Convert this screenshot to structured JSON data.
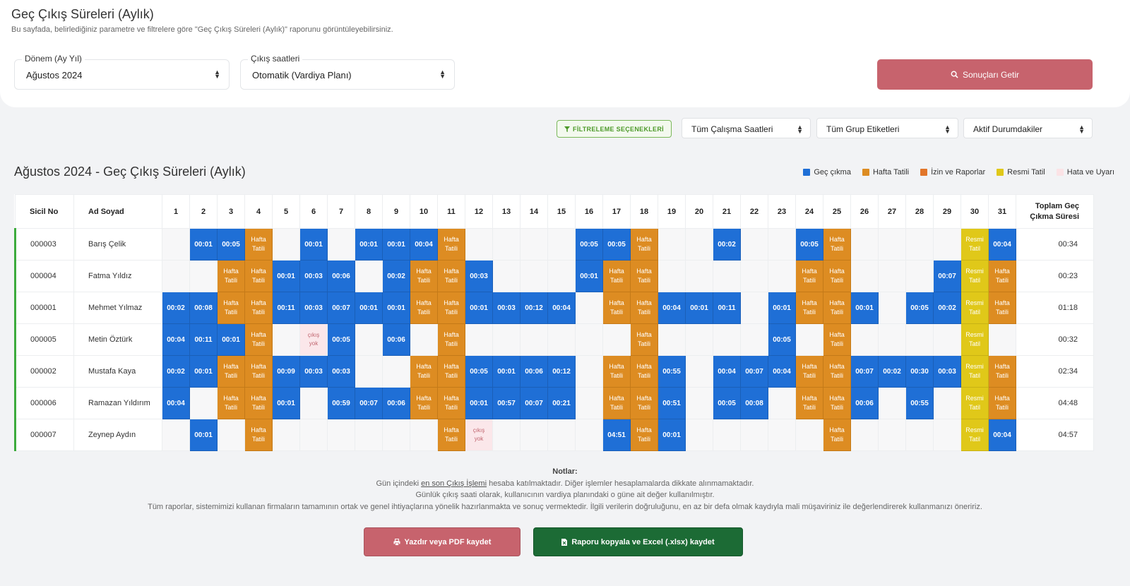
{
  "header": {
    "title": "Geç Çıkış Süreleri (Aylık)",
    "subtitle": "Bu sayfada, belirlediğiniz parametre ve filtrelere göre \"Geç Çıkış Süreleri (Aylık)\" raporunu görüntüleyebilirsiniz."
  },
  "form": {
    "period_label": "Dönem (Ay Yıl)",
    "period_value": "Ağustos 2024",
    "exit_label": "Çıkış saatleri",
    "exit_value": "Otomatik (Vardiya Planı)",
    "submit_label": "Sonuçları Getir"
  },
  "filters": {
    "button_label": "FİLTRELEME SEÇENEKLERİ",
    "work_hours": "Tüm Çalışma Saatleri",
    "group_tags": "Tüm Grup Etiketleri",
    "status": "Aktif Durumdakiler"
  },
  "report": {
    "title": "Ağustos 2024 - Geç Çıkış Süreleri (Aylık)"
  },
  "legend": [
    {
      "label": "Geç çıkma",
      "color": "#1f6fd6"
    },
    {
      "label": "Hafta Tatili",
      "color": "#dd8c22"
    },
    {
      "label": "İzin ve Raporlar",
      "color": "#e2762a"
    },
    {
      "label": "Resmi Tatil",
      "color": "#e0c819"
    },
    {
      "label": "Hata ve Uyarı",
      "color": "#fbe3e6"
    }
  ],
  "table": {
    "col_id": "Sicil No",
    "col_name": "Ad Soyad",
    "col_total": "Toplam Geç Çıkma Süresi",
    "days": [
      "1",
      "2",
      "3",
      "4",
      "5",
      "6",
      "7",
      "8",
      "9",
      "10",
      "11",
      "12",
      "13",
      "14",
      "15",
      "16",
      "17",
      "18",
      "19",
      "20",
      "21",
      "22",
      "23",
      "24",
      "25",
      "26",
      "27",
      "28",
      "29",
      "30",
      "31"
    ],
    "hafta_text": "Hafta Tatili",
    "resmi_text": "Resmi Tatil",
    "hata_text": "çıkış yok",
    "rows": [
      {
        "id": "000003",
        "name": "Barış Çelik",
        "total": "00:34",
        "cells": [
          "",
          "00:01",
          "00:05",
          "H",
          "",
          "00:01",
          "",
          "00:01",
          "00:01",
          "00:04",
          "H",
          "",
          "",
          "",
          "",
          "00:05",
          "00:05",
          "H",
          "",
          "",
          "00:02",
          "",
          "",
          "00:05",
          "H",
          "",
          "",
          "",
          "",
          "R",
          "00:04"
        ]
      },
      {
        "id": "000004",
        "name": "Fatma Yıldız",
        "total": "00:23",
        "cells": [
          "",
          "",
          "H",
          "H",
          "00:01",
          "00:03",
          "00:06",
          "",
          "00:02",
          "H",
          "H",
          "00:03",
          "",
          "",
          "",
          "00:01",
          "H",
          "H",
          "",
          "",
          "",
          "",
          "",
          "H",
          "H",
          "",
          "",
          "",
          "00:07",
          "R",
          "H"
        ]
      },
      {
        "id": "000001",
        "name": "Mehmet Yılmaz",
        "total": "01:18",
        "cells": [
          "00:02",
          "00:08",
          "H",
          "H",
          "00:11",
          "00:03",
          "00:07",
          "00:01",
          "00:01",
          "H",
          "H",
          "00:01",
          "00:03",
          "00:12",
          "00:04",
          "",
          "H",
          "H",
          "00:04",
          "00:01",
          "00:11",
          "",
          "00:01",
          "H",
          "H",
          "00:01",
          "",
          "00:05",
          "00:02",
          "R",
          "H"
        ]
      },
      {
        "id": "000005",
        "name": "Metin Öztürk",
        "total": "00:32",
        "cells": [
          "00:04",
          "00:11",
          "00:01",
          "H",
          "",
          "X",
          "00:05",
          "",
          "00:06",
          "",
          "H",
          "",
          "",
          "",
          "",
          "",
          "",
          "H",
          "",
          "",
          "",
          "",
          "00:05",
          "",
          "H",
          "",
          "",
          "",
          "",
          "R",
          ""
        ]
      },
      {
        "id": "000002",
        "name": "Mustafa Kaya",
        "total": "02:34",
        "cells": [
          "00:02",
          "00:01",
          "H",
          "H",
          "00:09",
          "00:03",
          "00:03",
          "",
          "",
          "H",
          "H",
          "00:05",
          "00:01",
          "00:06",
          "00:12",
          "",
          "H",
          "H",
          "00:55",
          "",
          "00:04",
          "00:07",
          "00:04",
          "H",
          "H",
          "00:07",
          "00:02",
          "00:30",
          "00:03",
          "R",
          "H"
        ]
      },
      {
        "id": "000006",
        "name": "Ramazan Yıldırım",
        "total": "04:48",
        "cells": [
          "00:04",
          "",
          "H",
          "H",
          "00:01",
          "",
          "00:59",
          "00:07",
          "00:06",
          "H",
          "H",
          "00:01",
          "00:57",
          "00:07",
          "00:21",
          "",
          "H",
          "H",
          "00:51",
          "",
          "00:05",
          "00:08",
          "",
          "H",
          "H",
          "00:06",
          "",
          "00:55",
          "",
          "R",
          "H"
        ]
      },
      {
        "id": "000007",
        "name": "Zeynep Aydın",
        "total": "04:57",
        "cells": [
          "",
          "00:01",
          "",
          "H",
          "",
          "",
          "",
          "",
          "",
          "",
          "H",
          "X",
          "",
          "",
          "",
          "",
          "04:51",
          "H",
          "00:01",
          "",
          "",
          "",
          "",
          "",
          "H",
          "",
          "",
          "",
          "",
          "R",
          "00:04"
        ]
      }
    ]
  },
  "notes": {
    "title": "Notlar:",
    "line1_pre": "Gün içindeki ",
    "line1_link": "en son Çıkış İşlemi",
    "line1_post": " hesaba katılmaktadır. Diğer işlemler hesaplamalarda dikkate alınmamaktadır.",
    "line2": "Günlük çıkış saati olarak, kullanıcının vardiya planındaki o güne ait değer kullanılmıştır.",
    "line3": "Tüm raporlar, sistemimizi kullanan firmaların tamamının ortak ve genel ihtiyaçlarına yönelik hazırlanmakta ve sonuç vermektedir. İlgili verilerin doğruluğunu, en az bir defa olmak kaydıyla mali müşaviriniz ile değerlendirerek kullanmanızı öneririz."
  },
  "actions": {
    "print_label": "Yazdır veya PDF kaydet",
    "excel_label": "Raporu kopyala ve Excel (.xlsx) kaydet"
  }
}
